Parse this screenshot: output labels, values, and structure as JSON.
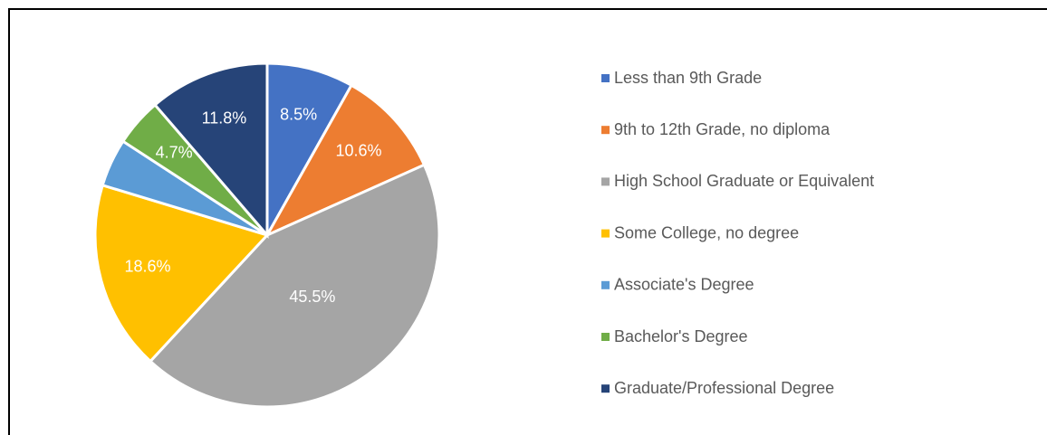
{
  "chart_data": {
    "type": "pie",
    "categories": [
      "Less than 9th Grade",
      "9th to 12th Grade, no diploma",
      "High School Graduate or Equivalent",
      "Some College, no degree",
      "Associate's Degree",
      "Bachelor's Degree",
      "Graduate/Professional Degree"
    ],
    "values": [
      8.5,
      10.6,
      45.5,
      18.6,
      4.7,
      4.7,
      11.8
    ],
    "value_labels": [
      "8.5%",
      "10.6%",
      "45.5%",
      "18.6%",
      null,
      "4.7%",
      "11.8%"
    ],
    "colors": [
      "#4472c4",
      "#ed7d31",
      "#a5a5a5",
      "#ffc000",
      "#5b9bd5",
      "#70ad47",
      "#264478"
    ],
    "legend": "right"
  }
}
